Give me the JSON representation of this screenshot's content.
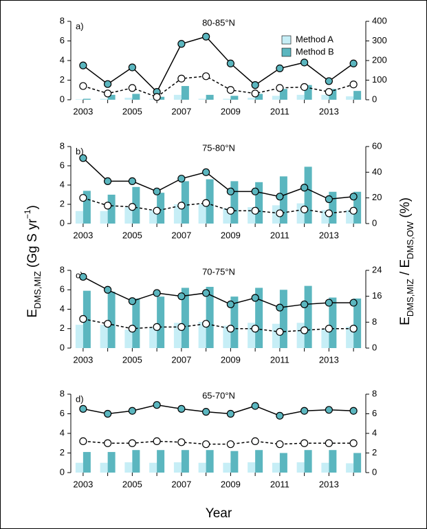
{
  "ylabel": [
    {
      "text": "E"
    },
    {
      "text": "DMS,MIZ",
      "style": "sub"
    },
    {
      "text": " (Gg S yr"
    },
    {
      "text": "−1",
      "style": "sup"
    },
    {
      "text": ")"
    }
  ],
  "y2label": [
    {
      "text": "E"
    },
    {
      "text": "DMS,MIZ",
      "style": "sub"
    },
    {
      "text": " / E"
    },
    {
      "text": "DMS,OW",
      "style": "sub"
    },
    {
      "text": " (%)"
    }
  ],
  "xlabel": "Year",
  "chart_data": [
    {
      "type": "bar_line",
      "panel": "a)",
      "title": "80-85°N",
      "legend": "upper right",
      "categories": [
        "2003",
        null,
        "2005",
        null,
        "2007",
        null,
        "2009",
        null,
        "2011",
        null,
        "2013",
        null
      ],
      "ylim": [
        0,
        8
      ],
      "yticks": [
        0,
        2,
        4,
        6,
        8
      ],
      "y2lim": [
        0,
        400
      ],
      "y2ticks": [
        0,
        100,
        200,
        300,
        400
      ],
      "series": [
        {
          "name": "Method A",
          "color": "#c6eef6",
          "values": [
            0.05,
            0.1,
            0.2,
            0.1,
            0.5,
            0.1,
            0.1,
            0.2,
            0.4,
            0.5,
            0.5,
            0.35
          ]
        },
        {
          "name": "Method B",
          "color": "#5bb6bf",
          "values": [
            0.1,
            0.5,
            0.6,
            0.3,
            1.4,
            0.5,
            0.4,
            0.6,
            1.1,
            1.5,
            1.1,
            0.9
          ]
        },
        {
          "axis": "y2",
          "color": "#000000",
          "line_style": "solid",
          "marker_fill": "#5bb6bf",
          "values": [
            175,
            80,
            165,
            40,
            285,
            322,
            185,
            75,
            160,
            190,
            95,
            185
          ]
        },
        {
          "axis": "y2",
          "color": "#000000",
          "line_style": "dashed",
          "marker_fill": "#ffffff",
          "values": [
            70,
            32,
            60,
            14,
            108,
            120,
            50,
            32,
            60,
            65,
            40,
            78
          ]
        }
      ]
    },
    {
      "type": "bar_line",
      "panel": "b)",
      "title": "75-80°N",
      "categories": [
        "2003",
        null,
        "2005",
        null,
        "2007",
        null,
        "2009",
        null,
        "2011",
        null,
        "2013",
        null
      ],
      "ylim": [
        0,
        8
      ],
      "yticks": [
        0,
        2,
        4,
        6,
        8
      ],
      "y2lim": [
        0,
        60
      ],
      "y2ticks": [
        0,
        20,
        40,
        60
      ],
      "series": [
        {
          "name": "Method A",
          "color": "#c6eef6",
          "values": [
            1.3,
            1.3,
            1.7,
            1.4,
            2.0,
            2.0,
            1.6,
            1.7,
            1.9,
            2.1,
            1.4,
            1.4
          ]
        },
        {
          "name": "Method B",
          "color": "#5bb6bf",
          "values": [
            3.4,
            3.0,
            3.8,
            3.2,
            4.4,
            4.6,
            4.4,
            4.3,
            4.9,
            5.9,
            3.3,
            3.3
          ]
        },
        {
          "axis": "y2",
          "color": "#000000",
          "line_style": "solid",
          "marker_fill": "#5bb6bf",
          "values": [
            51,
            33,
            33,
            25,
            35,
            40,
            25,
            25,
            21,
            28,
            19,
            21
          ]
        },
        {
          "axis": "y2",
          "color": "#000000",
          "line_style": "dashed",
          "marker_fill": "#ffffff",
          "values": [
            20,
            14,
            13,
            10,
            14,
            16,
            10,
            10,
            8,
            11,
            8,
            10
          ]
        }
      ]
    },
    {
      "type": "bar_line",
      "panel": "c)",
      "title": "70-75°N",
      "categories": [
        "2003",
        null,
        "2005",
        null,
        "2007",
        null,
        "2009",
        null,
        "2011",
        null,
        "2013",
        null
      ],
      "ylim": [
        0,
        8
      ],
      "yticks": [
        0,
        2,
        4,
        6,
        8
      ],
      "y2lim": [
        0,
        24
      ],
      "y2ticks": [
        0,
        8,
        16,
        24
      ],
      "series": [
        {
          "name": "Method A",
          "color": "#c6eef6",
          "values": [
            2.4,
            2.4,
            1.9,
            2.1,
            2.6,
            2.7,
            2.3,
            2.6,
            2.5,
            2.6,
            2.0,
            2.2
          ]
        },
        {
          "name": "Method B",
          "color": "#5bb6bf",
          "values": [
            5.9,
            5.8,
            5.1,
            5.3,
            6.2,
            6.3,
            5.3,
            6.2,
            6.0,
            6.4,
            5.2,
            5.1
          ]
        },
        {
          "axis": "y2",
          "color": "#000000",
          "line_style": "solid",
          "marker_fill": "#5bb6bf",
          "values": [
            22,
            18,
            14.5,
            17,
            16,
            17,
            13.5,
            15.5,
            12.5,
            13.5,
            14,
            14
          ]
        },
        {
          "axis": "y2",
          "color": "#000000",
          "line_style": "dashed",
          "marker_fill": "#ffffff",
          "values": [
            9,
            7.5,
            6,
            6.5,
            6.5,
            7.5,
            6,
            6,
            5,
            5.5,
            6,
            6
          ]
        }
      ]
    },
    {
      "type": "bar_line",
      "panel": "d)",
      "title": "65-70°N",
      "categories": [
        "2003",
        null,
        "2005",
        null,
        "2007",
        null,
        "2009",
        null,
        "2011",
        null,
        "2013",
        null
      ],
      "ylim": [
        0,
        8
      ],
      "yticks": [
        0,
        2,
        4,
        6,
        8
      ],
      "y2lim": [
        0,
        8
      ],
      "y2ticks": [
        0,
        2,
        4,
        6,
        8
      ],
      "series": [
        {
          "name": "Method A",
          "color": "#c6eef6",
          "values": [
            1.0,
            1.0,
            1.05,
            1.0,
            1.05,
            1.0,
            1.0,
            1.05,
            1.0,
            1.05,
            1.0,
            0.95
          ]
        },
        {
          "name": "Method B",
          "color": "#5bb6bf",
          "values": [
            2.1,
            2.1,
            2.3,
            2.3,
            2.3,
            2.3,
            2.2,
            2.3,
            2.0,
            2.3,
            2.3,
            2.0
          ]
        },
        {
          "axis": "y2",
          "color": "#000000",
          "line_style": "solid",
          "marker_fill": "#5bb6bf",
          "values": [
            6.5,
            6.0,
            6.3,
            6.9,
            6.5,
            6.2,
            6.0,
            6.8,
            5.8,
            6.3,
            6.4,
            6.3
          ]
        },
        {
          "axis": "y2",
          "color": "#000000",
          "line_style": "dashed",
          "marker_fill": "#ffffff",
          "values": [
            3.2,
            3.0,
            3.0,
            3.2,
            3.1,
            2.9,
            2.9,
            3.2,
            2.9,
            3.0,
            3.0,
            3.0
          ]
        }
      ]
    }
  ]
}
